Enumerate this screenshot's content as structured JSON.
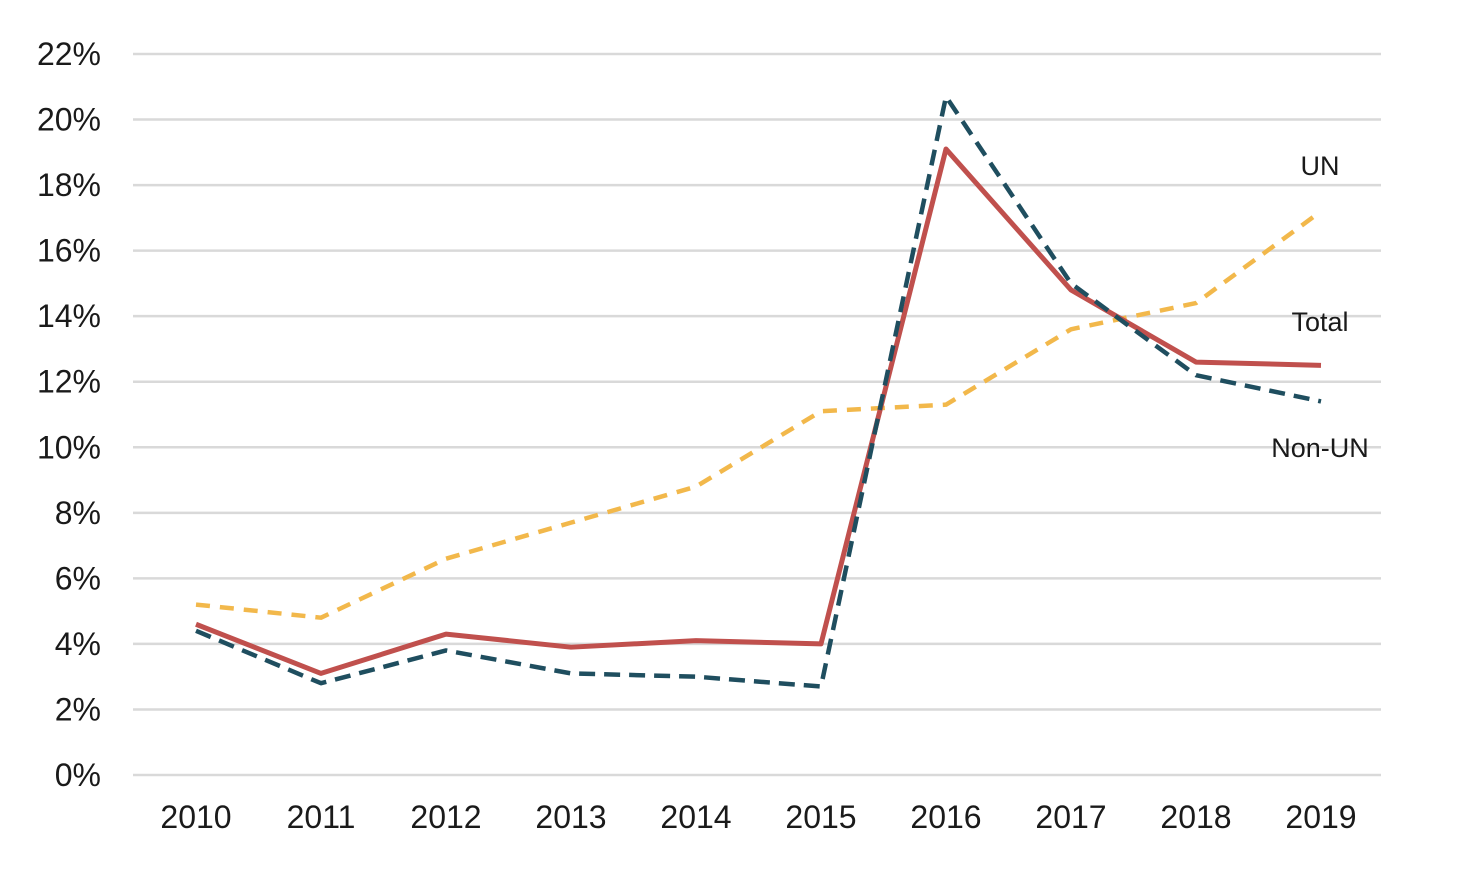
{
  "chart_data": {
    "type": "line",
    "title": "",
    "xlabel": "",
    "ylabel": "",
    "categories": [
      "2010",
      "2011",
      "2012",
      "2013",
      "2014",
      "2015",
      "2016",
      "2017",
      "2018",
      "2019"
    ],
    "ylim": [
      0,
      22
    ],
    "yticks": [
      0,
      2,
      4,
      6,
      8,
      10,
      12,
      14,
      16,
      18,
      20,
      22
    ],
    "ytick_labels": [
      "0%",
      "2%",
      "4%",
      "6%",
      "8%",
      "10%",
      "12%",
      "14%",
      "16%",
      "18%",
      "20%",
      "22%"
    ],
    "grid": true,
    "legend": "inline labels at line ends",
    "series": [
      {
        "name": "UN",
        "color": "#f2b84b",
        "style": "dashed",
        "values": [
          5.2,
          4.8,
          6.6,
          7.7,
          8.8,
          11.1,
          11.3,
          13.6,
          14.4,
          17.2
        ]
      },
      {
        "name": "Total",
        "color": "#c0504d",
        "style": "solid",
        "values": [
          4.6,
          3.1,
          4.3,
          3.9,
          4.1,
          4.0,
          19.1,
          14.8,
          12.6,
          12.5
        ]
      },
      {
        "name": "Non-UN",
        "color": "#1f4e5f",
        "style": "dashed",
        "values": [
          4.4,
          2.8,
          3.8,
          3.1,
          3.0,
          2.7,
          20.7,
          15.0,
          12.2,
          11.4
        ]
      }
    ]
  }
}
